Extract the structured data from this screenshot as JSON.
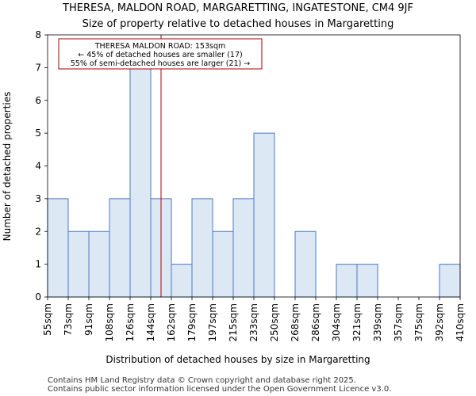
{
  "chart_data": {
    "type": "bar",
    "title": "THERESA, MALDON ROAD, MARGARETTING, INGATESTONE, CM4 9JF",
    "subtitle": "Size of property relative to detached houses in Margaretting",
    "xlabel": "Distribution of detached houses by size in Margaretting",
    "ylabel": "Number of detached properties",
    "bin_edges": [
      "55sqm",
      "73sqm",
      "91sqm",
      "108sqm",
      "126sqm",
      "144sqm",
      "162sqm",
      "179sqm",
      "197sqm",
      "215sqm",
      "233sqm",
      "250sqm",
      "268sqm",
      "286sqm",
      "304sqm",
      "321sqm",
      "339sqm",
      "357sqm",
      "375sqm",
      "392sqm",
      "410sqm"
    ],
    "values": [
      3,
      2,
      2,
      3,
      7,
      3,
      1,
      3,
      2,
      3,
      5,
      0,
      2,
      0,
      1,
      1,
      0,
      0,
      0,
      1
    ],
    "ylim": [
      0,
      8
    ],
    "yticks": [
      0,
      1,
      2,
      3,
      4,
      5,
      6,
      7,
      8
    ],
    "highlight_value_sqm": 153,
    "bar_color": "#dde8f5",
    "bar_edge_color": "#4a78c2",
    "marker_color": "#aa0000",
    "annotation": {
      "line1": "THERESA MALDON ROAD: 153sqm",
      "line2": "← 45% of detached houses are smaller (17)",
      "line3": "55% of semi-detached houses are larger (21) →"
    }
  },
  "footer": {
    "line1": "Contains HM Land Registry data © Crown copyright and database right 2025.",
    "line2": "Contains public sector information licensed under the Open Government Licence v3.0."
  }
}
